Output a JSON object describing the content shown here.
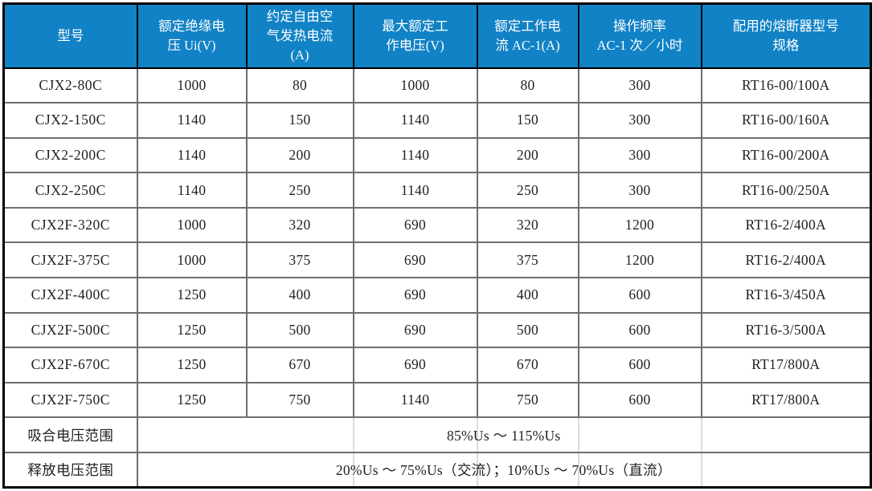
{
  "table": {
    "headers": [
      {
        "label": "型号"
      },
      {
        "label": "额定绝缘电\n压 Ui(V)"
      },
      {
        "label": "约定自由空\n气发热电流\n(A)"
      },
      {
        "label": "最大额定工\n作电压(V)"
      },
      {
        "label": "额定工作电\n流 AC-1(A)"
      },
      {
        "label": "操作频率\nAC-1 次／小时"
      },
      {
        "label": "配用的熔断器型号\n规格"
      }
    ],
    "rows": [
      [
        "CJX2-80C",
        "1000",
        "80",
        "1000",
        "80",
        "300",
        "RT16-00/100A"
      ],
      [
        "CJX2-150C",
        "1140",
        "150",
        "1140",
        "150",
        "300",
        "RT16-00/160A"
      ],
      [
        "CJX2-200C",
        "1140",
        "200",
        "1140",
        "200",
        "300",
        "RT16-00/200A"
      ],
      [
        "CJX2-250C",
        "1140",
        "250",
        "1140",
        "250",
        "300",
        "RT16-00/250A"
      ],
      [
        "CJX2F-320C",
        "1000",
        "320",
        "690",
        "320",
        "1200",
        "RT16-2/400A"
      ],
      [
        "CJX2F-375C",
        "1000",
        "375",
        "690",
        "375",
        "1200",
        "RT16-2/400A"
      ],
      [
        "CJX2F-400C",
        "1250",
        "400",
        "690",
        "400",
        "600",
        "RT16-3/450A"
      ],
      [
        "CJX2F-500C",
        "1250",
        "500",
        "690",
        "500",
        "600",
        "RT16-3/500A"
      ],
      [
        "CJX2F-670C",
        "1250",
        "670",
        "690",
        "670",
        "600",
        "RT17/800A"
      ],
      [
        "CJX2F-750C",
        "1250",
        "750",
        "1140",
        "750",
        "600",
        "RT17/800A"
      ]
    ],
    "footer": [
      {
        "label": "吸合电压范围",
        "value": "85%Us ～ 115%Us"
      },
      {
        "label": "释放电压范围",
        "value": "20%Us ～ 75%Us（交流）；10%Us ～ 70%Us（直流）"
      }
    ],
    "colors": {
      "header_bg": "#1182C5",
      "header_text": "#FFFFFF",
      "body_text": "#1F1F1F",
      "grid_line": "#6E6E6E",
      "outer_border": "#000000",
      "faint_merged_line": "#DCDCDC"
    }
  }
}
